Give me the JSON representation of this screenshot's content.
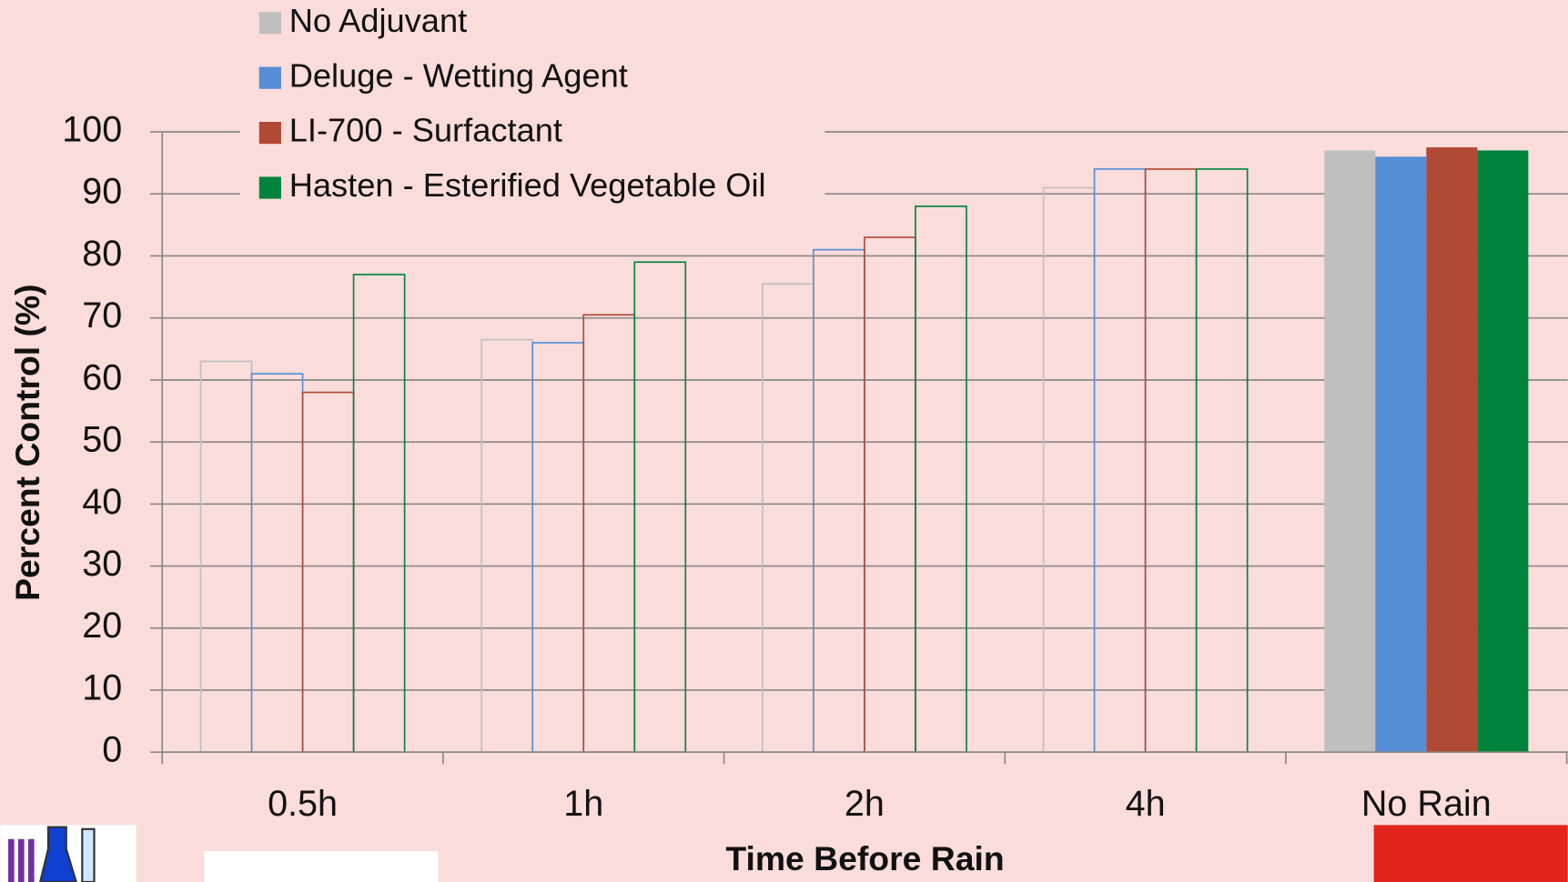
{
  "chart_data": {
    "type": "bar",
    "x_label": "Time Before Rain",
    "y_label": "Percent Control (%)",
    "categories": [
      "0.5h",
      "1h",
      "2h",
      "4h",
      "No Rain"
    ],
    "series": [
      {
        "name": "No Adjuvant",
        "color": "#bfbfbf",
        "values": [
          63,
          66.5,
          75.5,
          91,
          97
        ]
      },
      {
        "name": "Deluge - Wetting Agent",
        "color": "#558ed5",
        "values": [
          61,
          66,
          81,
          94,
          96
        ]
      },
      {
        "name": "LI-700 - Surfactant",
        "color": "#b04a35",
        "values": [
          58,
          70.5,
          83,
          94,
          97.5
        ]
      },
      {
        "name": "Hasten - Esterified Vegetable Oil",
        "color": "#00843d",
        "values": [
          77,
          79,
          88,
          94,
          97
        ]
      }
    ],
    "ylim": [
      0,
      100
    ],
    "yticks": [
      0,
      10,
      20,
      30,
      40,
      50,
      60,
      70,
      80,
      90,
      100
    ],
    "grid": true,
    "legend": "top-left"
  }
}
